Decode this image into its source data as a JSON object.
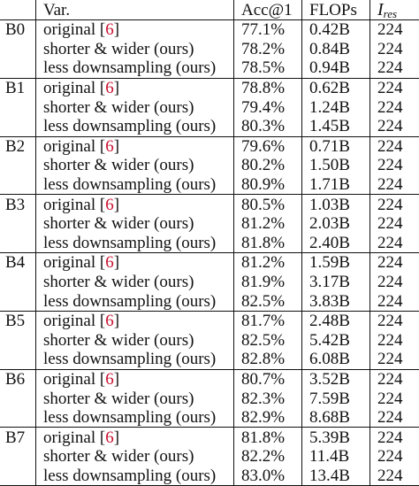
{
  "header": {
    "model": "",
    "variant": "Var.",
    "accuracy": "Acc@1",
    "flops": "FLOPs",
    "resolution_main": "I",
    "resolution_sub": "res"
  },
  "groups": [
    {
      "model": "B0",
      "rows": [
        {
          "pre": "original [",
          "ref": "6",
          "post": "]",
          "acc": "77.1%",
          "flops": "0.42B",
          "res": "224",
          "bold": false
        },
        {
          "pre": "shorter & wider (ours)",
          "ref": "",
          "post": "",
          "acc": "78.2%",
          "flops": "0.84B",
          "res": "224",
          "bold": false
        },
        {
          "pre": "less downsampling (ours)",
          "ref": "",
          "post": "",
          "acc": "78.5%",
          "flops": "0.94B",
          "res": "224",
          "bold": true
        }
      ]
    },
    {
      "model": "B1",
      "rows": [
        {
          "pre": "original [",
          "ref": "6",
          "post": "]",
          "acc": "78.8%",
          "flops": "0.62B",
          "res": "224",
          "bold": false
        },
        {
          "pre": "shorter & wider (ours)",
          "ref": "",
          "post": "",
          "acc": "79.4%",
          "flops": "1.24B",
          "res": "224",
          "bold": false
        },
        {
          "pre": "less downsampling (ours)",
          "ref": "",
          "post": "",
          "acc": "80.3%",
          "flops": "1.45B",
          "res": "224",
          "bold": true
        }
      ]
    },
    {
      "model": "B2",
      "rows": [
        {
          "pre": "original [",
          "ref": "6",
          "post": "]",
          "acc": "79.6%",
          "flops": "0.71B",
          "res": "224",
          "bold": false
        },
        {
          "pre": "shorter & wider (ours)",
          "ref": "",
          "post": "",
          "acc": "80.2%",
          "flops": "1.50B",
          "res": "224",
          "bold": false
        },
        {
          "pre": "less downsampling (ours)",
          "ref": "",
          "post": "",
          "acc": "80.9%",
          "flops": "1.71B",
          "res": "224",
          "bold": true
        }
      ]
    },
    {
      "model": "B3",
      "rows": [
        {
          "pre": "original [",
          "ref": "6",
          "post": "]",
          "acc": "80.5%",
          "flops": "1.03B",
          "res": "224",
          "bold": false
        },
        {
          "pre": "shorter & wider (ours)",
          "ref": "",
          "post": "",
          "acc": "81.2%",
          "flops": "2.03B",
          "res": "224",
          "bold": false
        },
        {
          "pre": "less downsampling (ours)",
          "ref": "",
          "post": "",
          "acc": "81.8%",
          "flops": "2.40B",
          "res": "224",
          "bold": true
        }
      ]
    },
    {
      "model": "B4",
      "rows": [
        {
          "pre": "original [",
          "ref": "6",
          "post": "]",
          "acc": "81.2%",
          "flops": "1.59B",
          "res": "224",
          "bold": false
        },
        {
          "pre": "shorter & wider (ours)",
          "ref": "",
          "post": "",
          "acc": "81.9%",
          "flops": "3.17B",
          "res": "224",
          "bold": false
        },
        {
          "pre": "less downsampling (ours)",
          "ref": "",
          "post": "",
          "acc": "82.5%",
          "flops": "3.83B",
          "res": "224",
          "bold": true
        }
      ]
    },
    {
      "model": "B5",
      "rows": [
        {
          "pre": "original [",
          "ref": "6",
          "post": "]",
          "acc": "81.7%",
          "flops": "2.48B",
          "res": "224",
          "bold": false
        },
        {
          "pre": "shorter & wider (ours)",
          "ref": "",
          "post": "",
          "acc": "82.5%",
          "flops": "5.42B",
          "res": "224",
          "bold": false
        },
        {
          "pre": "less downsampling (ours)",
          "ref": "",
          "post": "",
          "acc": "82.8%",
          "flops": "6.08B",
          "res": "224",
          "bold": true
        }
      ]
    },
    {
      "model": "B6",
      "rows": [
        {
          "pre": "original [",
          "ref": "6",
          "post": "]",
          "acc": "80.7%",
          "flops": "3.52B",
          "res": "224",
          "bold": false
        },
        {
          "pre": "shorter & wider (ours)",
          "ref": "",
          "post": "",
          "acc": "82.3%",
          "flops": "7.59B",
          "res": "224",
          "bold": false
        },
        {
          "pre": "less downsampling (ours)",
          "ref": "",
          "post": "",
          "acc": "82.9%",
          "flops": "8.68B",
          "res": "224",
          "bold": true
        }
      ]
    },
    {
      "model": "B7",
      "rows": [
        {
          "pre": "original [",
          "ref": "6",
          "post": "]",
          "acc": "81.8%",
          "flops": "5.39B",
          "res": "224",
          "bold": false
        },
        {
          "pre": "shorter & wider (ours)",
          "ref": "",
          "post": "",
          "acc": "82.2%",
          "flops": "11.4B",
          "res": "224",
          "bold": false
        },
        {
          "pre": "less downsampling (ours)",
          "ref": "",
          "post": "",
          "acc": "83.0%",
          "flops": "13.4B",
          "res": "224",
          "bold": true
        }
      ]
    }
  ]
}
